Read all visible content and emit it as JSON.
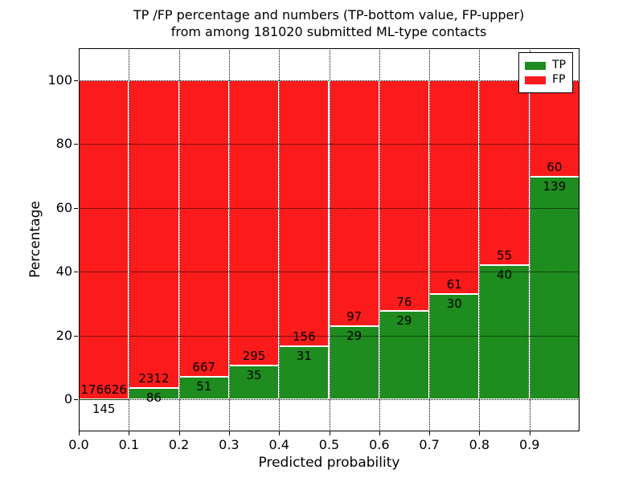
{
  "title": {
    "line1": "TP /FP percentage and numbers (TP-bottom value, FP-upper)",
    "line2": "from among 181020 submitted ML-type contacts"
  },
  "chart_data": {
    "type": "bar",
    "stacked": true,
    "normalization": "each bin scaled to 100%",
    "title": "TP /FP percentage and numbers (TP-bottom value, FP-upper) from among 181020 submitted ML-type contacts",
    "xlabel": "Predicted probability",
    "ylabel": "Percentage",
    "total_submitted": 181020,
    "bin_edges": [
      0.0,
      0.1,
      0.2,
      0.3,
      0.4,
      0.5,
      0.6,
      0.7,
      0.8,
      0.9,
      1.0
    ],
    "x_tick_labels": [
      "0.0",
      "0.1",
      "0.2",
      "0.3",
      "0.4",
      "0.5",
      "0.6",
      "0.7",
      "0.8",
      "0.9"
    ],
    "y_ticks": [
      0,
      20,
      40,
      60,
      80,
      100
    ],
    "y_tick_labels": [
      "0",
      "20",
      "40",
      "60",
      "80",
      "100"
    ],
    "ylim": [
      -10,
      110
    ],
    "xlim": [
      0.0,
      1.0
    ],
    "grid": true,
    "grid_style": "dotted black, drawn above bars",
    "bar_edge_color": "#ffffff",
    "series": [
      {
        "name": "TP",
        "color": "#1e8c1e",
        "counts": [
          145,
          86,
          51,
          35,
          31,
          29,
          29,
          30,
          40,
          139
        ]
      },
      {
        "name": "FP",
        "color": "#fb1b1b",
        "counts": [
          176626,
          2312,
          667,
          295,
          156,
          97,
          76,
          61,
          55,
          60
        ]
      }
    ],
    "tp_percent_per_bin": [
      0.08,
      3.59,
      7.1,
      10.61,
      16.58,
      23.02,
      27.62,
      32.97,
      42.11,
      69.85
    ],
    "legend": {
      "position": "upper right",
      "items": [
        {
          "label": "TP",
          "color": "#1e8c1e"
        },
        {
          "label": "FP",
          "color": "#fb1b1b"
        }
      ]
    }
  }
}
